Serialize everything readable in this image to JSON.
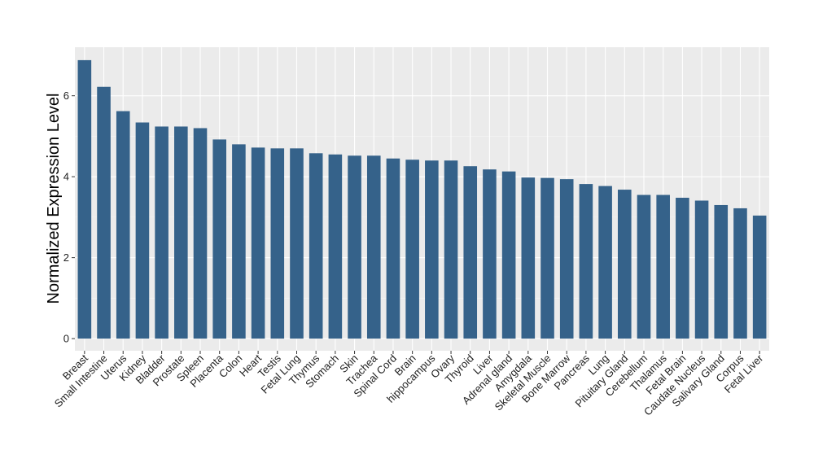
{
  "chart_data": {
    "type": "bar",
    "title": "",
    "xlabel": "",
    "ylabel": "Normalized Expression Level",
    "ylim": [
      -0.3,
      7.2
    ],
    "yticks": [
      0,
      2,
      4,
      6
    ],
    "grid": true,
    "bar_color": "#35628a",
    "panel_color": "#ebebeb",
    "categories": [
      "Breast",
      "Small Intestine",
      "Uterus",
      "Kidney",
      "Bladder",
      "Prostate",
      "Spleen",
      "Placenta",
      "Colon",
      "Heart",
      "Testis",
      "Fetal Lung",
      "Thymus",
      "Stomach",
      "Skin",
      "Trachea",
      "Spinal Cord",
      "Brain",
      "hippocampus",
      "Ovary",
      "Thyroid",
      "Liver",
      "Adrenal gland",
      "Amygdala",
      "Skeletal Muscle",
      "Bone Marrow",
      "Pancreas",
      "Lung",
      "Pituitary Gland",
      "Cerebellum",
      "Thalamus",
      "Fetal Brain",
      "Caudate Nucleus",
      "Salivary Gland",
      "Corpus",
      "Fetal Liver"
    ],
    "values": [
      6.88,
      6.22,
      5.62,
      5.34,
      5.24,
      5.24,
      5.2,
      4.92,
      4.8,
      4.72,
      4.7,
      4.7,
      4.58,
      4.55,
      4.52,
      4.52,
      4.45,
      4.42,
      4.4,
      4.4,
      4.26,
      4.18,
      4.13,
      3.98,
      3.97,
      3.94,
      3.82,
      3.77,
      3.68,
      3.55,
      3.55,
      3.48,
      3.41,
      3.3,
      3.22,
      3.04
    ]
  }
}
